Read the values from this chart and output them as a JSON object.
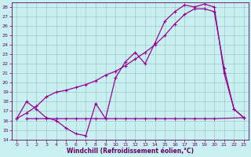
{
  "xlabel": "Windchill (Refroidissement éolien,°C)",
  "bg_color": "#c8f0f0",
  "grid_color": "#a0c8c8",
  "line_color": "#990099",
  "xlim": [
    -0.5,
    23.5
  ],
  "ylim": [
    14,
    28.5
  ],
  "xticks": [
    0,
    1,
    2,
    3,
    4,
    5,
    6,
    7,
    8,
    9,
    10,
    11,
    12,
    13,
    14,
    15,
    16,
    17,
    18,
    19,
    20,
    21,
    22,
    23
  ],
  "yticks": [
    14,
    15,
    16,
    17,
    18,
    19,
    20,
    21,
    22,
    23,
    24,
    25,
    26,
    27,
    28
  ],
  "line1_x": [
    0,
    1,
    2,
    3,
    4,
    5,
    6,
    7,
    8,
    9,
    10,
    11,
    12,
    13,
    14,
    15,
    16,
    17,
    18,
    19,
    20,
    21,
    22,
    23
  ],
  "line1_y": [
    16.2,
    18.0,
    17.2,
    16.3,
    16.0,
    15.2,
    14.6,
    14.4,
    17.8,
    16.2,
    20.5,
    22.2,
    23.2,
    22.0,
    24.2,
    26.5,
    27.5,
    28.2,
    28.0,
    28.3,
    28.0,
    21.0,
    17.2,
    16.3
  ],
  "line2_x": [
    0,
    1,
    2,
    3,
    4,
    5,
    6,
    7,
    8,
    9,
    10,
    11,
    12,
    13,
    14,
    15,
    16,
    17,
    18,
    19,
    20,
    21,
    22,
    23
  ],
  "line2_y": [
    16.2,
    16.8,
    17.5,
    18.5,
    19.0,
    19.2,
    19.5,
    19.8,
    20.2,
    20.8,
    21.2,
    21.8,
    22.5,
    23.2,
    24.0,
    25.0,
    26.2,
    27.2,
    27.8,
    27.8,
    27.5,
    21.5,
    17.2,
    16.3
  ],
  "line3_x": [
    1,
    2,
    3,
    4,
    5,
    6,
    7,
    8,
    9,
    10,
    11,
    12,
    13,
    14,
    15,
    16,
    17,
    18,
    19,
    20,
    23
  ],
  "line3_y": [
    16.2,
    16.2,
    16.2,
    16.2,
    16.2,
    16.2,
    16.2,
    16.2,
    16.2,
    16.2,
    16.2,
    16.2,
    16.2,
    16.2,
    16.2,
    16.2,
    16.2,
    16.2,
    16.2,
    16.2,
    16.3
  ]
}
